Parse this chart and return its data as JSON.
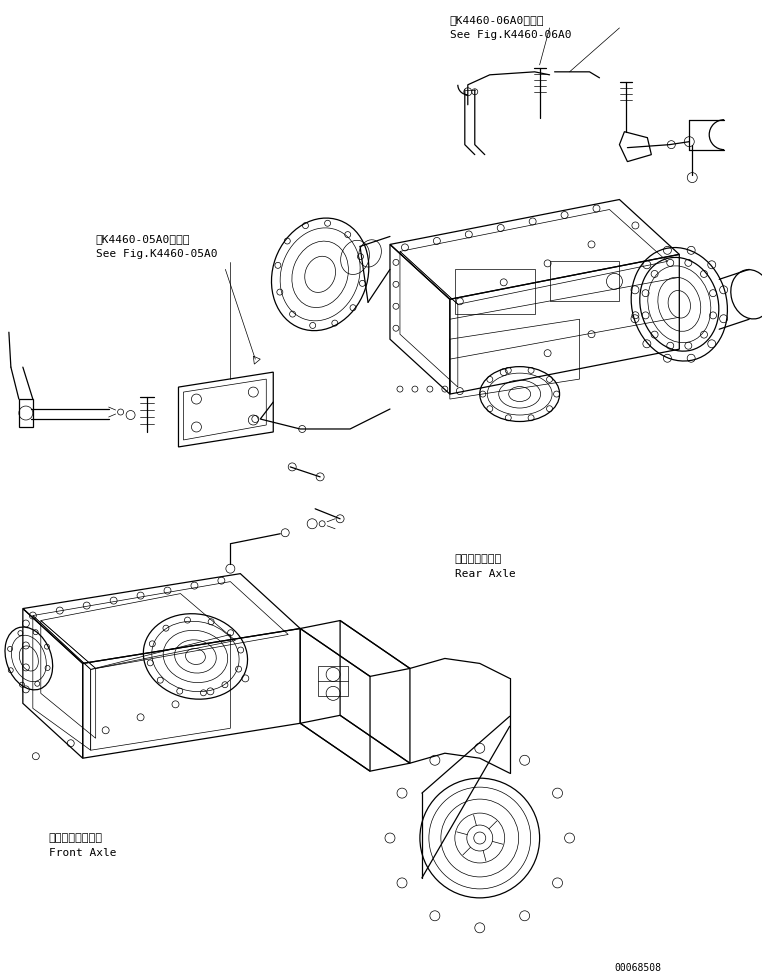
{
  "bg_color": "#ffffff",
  "line_color": "#000000",
  "fig_width": 7.63,
  "fig_height": 9.75,
  "dpi": 100,
  "label_top_right_line1": "第K4460-06A0図参照",
  "label_top_right_line2": "See Fig.K4460-06A0",
  "label_mid_left_line1": "第K4460-05A0図参照",
  "label_mid_left_line2": "See Fig.K4460-05A0",
  "label_rear_axle_line1": "リヤーアクスル",
  "label_rear_axle_line2": "Rear Axle",
  "label_front_axle_line1": "フロントアクスル",
  "label_front_axle_line2": "Front Axle",
  "serial_number": "00068508",
  "font_size_labels": 8,
  "font_size_serial": 7
}
